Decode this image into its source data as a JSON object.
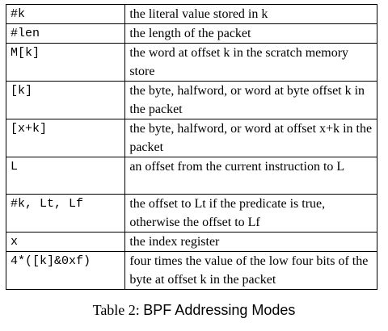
{
  "table": {
    "rows": [
      {
        "mode": "#k",
        "desc": "the literal value stored in k"
      },
      {
        "mode": "#len",
        "desc": "the length of the packet"
      },
      {
        "mode": "M[k]",
        "desc": "the word at offset k in the scratch memory store"
      },
      {
        "mode": "[k]",
        "desc": "the byte, halfword, or word at byte offset k in the packet"
      },
      {
        "mode": "[x+k]",
        "desc": "the byte, halfword, or word at offset x+k in the packet"
      },
      {
        "mode": "L",
        "desc": "an offset from the current instruction to L"
      },
      {
        "mode": "#k, Lt, Lf",
        "desc": "the offset to Lt if the predicate is true, otherwise the offset to Lf"
      },
      {
        "mode": "x",
        "desc": "the index register"
      },
      {
        "mode": "4*([k]&0xf)",
        "desc": "four times the value of the low four bits of the byte at offset k in the packet"
      }
    ]
  },
  "caption": {
    "label": "Table 2:",
    "title": "BPF Addressing Modes"
  }
}
